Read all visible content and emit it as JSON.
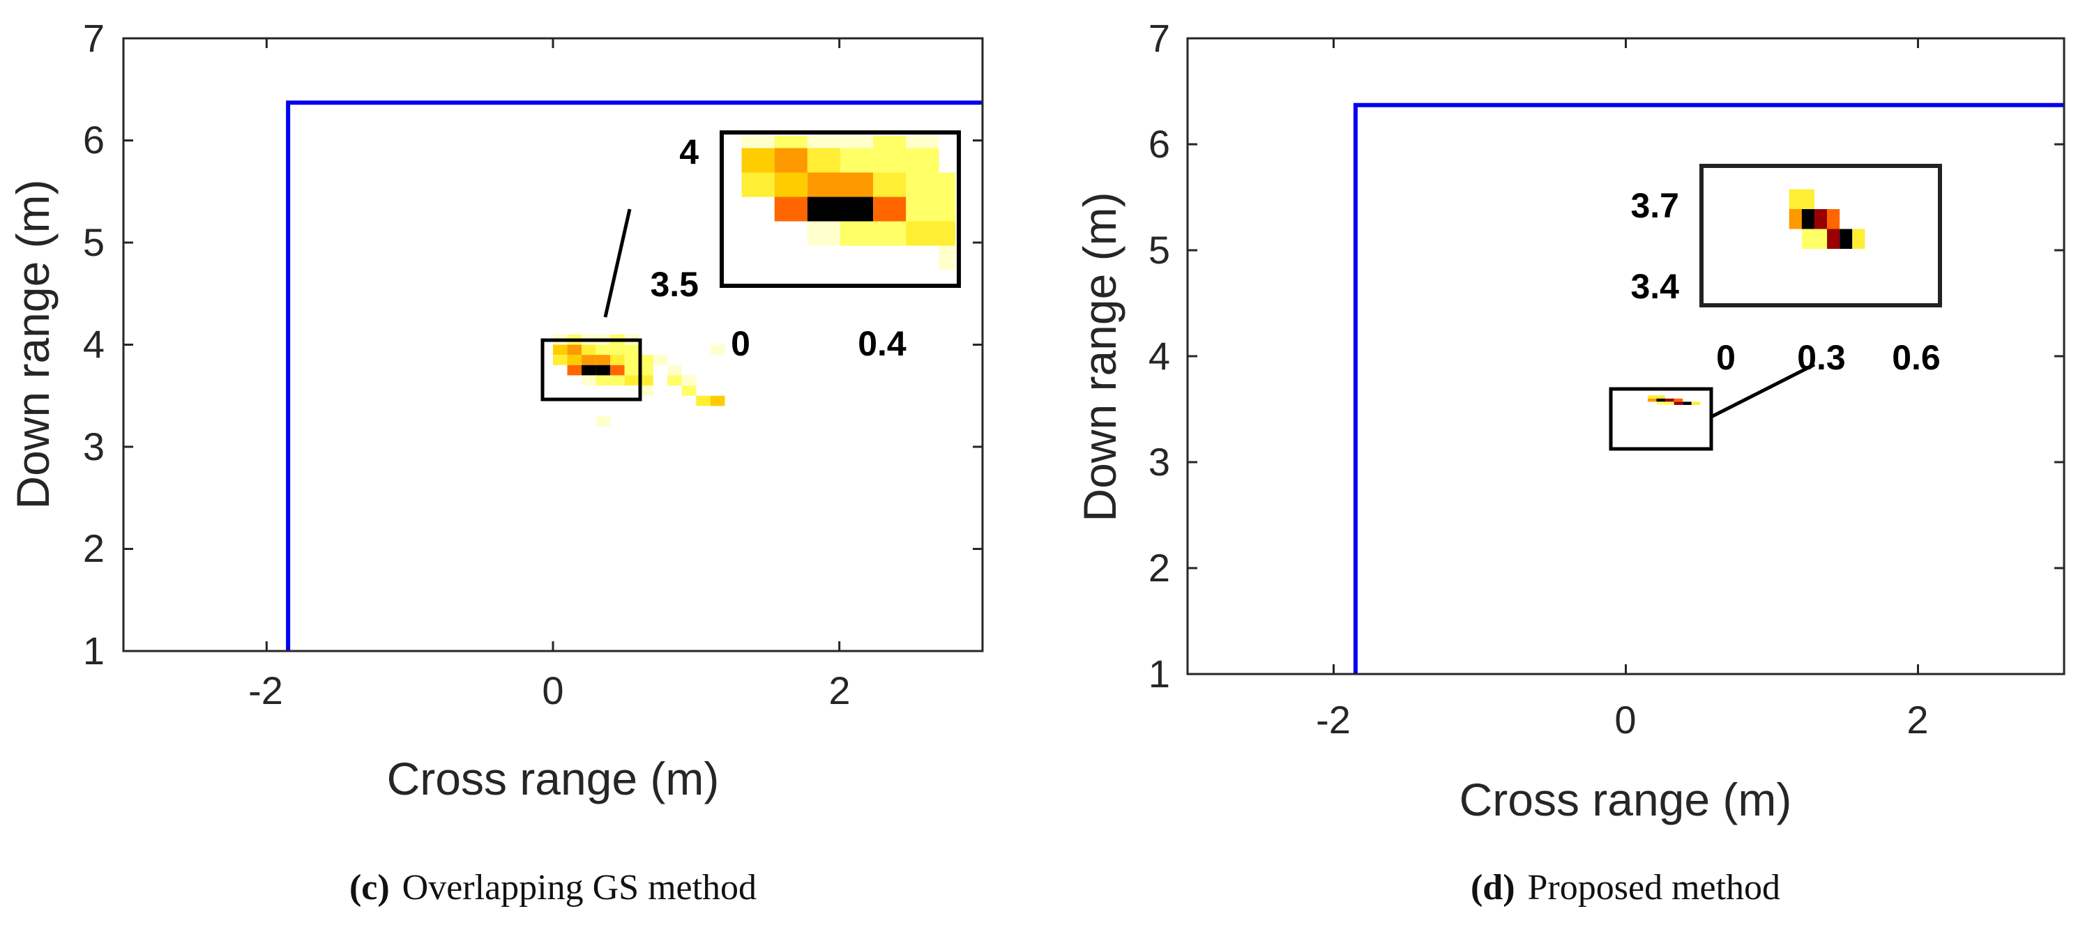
{
  "chart_data": [
    {
      "type": "heatmap",
      "panel": "c",
      "xlabel": "Cross range (m)",
      "ylabel": "Down range (m)",
      "xlim": [
        -3,
        3
      ],
      "ylim": [
        1,
        7
      ],
      "xticks": [
        "-2",
        "0",
        "2"
      ],
      "yticks": [
        "1",
        "2",
        "3",
        "4",
        "5",
        "6",
        "7"
      ],
      "wall": {
        "x": -1.85,
        "y": 6.37,
        "color": "#0000ee"
      },
      "cell_size": [
        0.1,
        0.1
      ],
      "cells": [
        [
          0.0,
          4.0,
          1
        ],
        [
          0.1,
          4.0,
          2
        ],
        [
          0.2,
          4.0,
          1
        ],
        [
          0.3,
          4.0,
          1
        ],
        [
          0.4,
          4.0,
          2
        ],
        [
          0.5,
          4.0,
          1
        ],
        [
          0.0,
          3.9,
          4
        ],
        [
          0.1,
          3.9,
          5
        ],
        [
          0.2,
          3.9,
          3
        ],
        [
          0.3,
          3.9,
          2
        ],
        [
          0.4,
          3.9,
          2
        ],
        [
          0.5,
          3.9,
          2
        ],
        [
          1.1,
          3.9,
          1
        ],
        [
          0.0,
          3.8,
          3
        ],
        [
          0.1,
          3.8,
          4
        ],
        [
          0.2,
          3.8,
          5
        ],
        [
          0.3,
          3.8,
          5
        ],
        [
          0.4,
          3.8,
          3
        ],
        [
          0.5,
          3.8,
          2
        ],
        [
          0.6,
          3.8,
          2
        ],
        [
          0.7,
          3.8,
          1
        ],
        [
          0.1,
          3.7,
          6
        ],
        [
          0.2,
          3.7,
          9
        ],
        [
          0.3,
          3.7,
          9
        ],
        [
          0.4,
          3.7,
          6
        ],
        [
          0.5,
          3.7,
          2
        ],
        [
          0.6,
          3.7,
          2
        ],
        [
          0.8,
          3.7,
          1
        ],
        [
          0.2,
          3.6,
          1
        ],
        [
          0.3,
          3.6,
          2
        ],
        [
          0.4,
          3.6,
          2
        ],
        [
          0.5,
          3.6,
          3
        ],
        [
          0.6,
          3.6,
          3
        ],
        [
          0.8,
          3.6,
          2
        ],
        [
          0.9,
          3.6,
          1
        ],
        [
          0.6,
          3.5,
          1
        ],
        [
          0.9,
          3.5,
          2
        ],
        [
          1.0,
          3.4,
          3
        ],
        [
          1.1,
          3.4,
          4
        ],
        [
          0.3,
          3.2,
          1
        ]
      ],
      "inset": {
        "xticks": [
          "0",
          "0.4"
        ],
        "yticks": [
          "4",
          "3.5"
        ]
      }
    },
    {
      "type": "heatmap",
      "panel": "d",
      "xlabel": "Cross range (m)",
      "ylabel": "Down range (m)",
      "xlim": [
        -3,
        3
      ],
      "ylim": [
        1,
        7
      ],
      "xticks": [
        "-2",
        "0",
        "2"
      ],
      "yticks": [
        "1",
        "2",
        "3",
        "4",
        "5",
        "6",
        "7"
      ],
      "wall": {
        "x": -1.85,
        "y": 6.37,
        "color": "#0000ee"
      },
      "cell_size": [
        0.06,
        0.03
      ],
      "cells": [
        [
          0.15,
          3.6,
          3
        ],
        [
          0.21,
          3.6,
          3
        ],
        [
          0.15,
          3.57,
          5
        ],
        [
          0.21,
          3.57,
          9
        ],
        [
          0.27,
          3.57,
          8
        ],
        [
          0.33,
          3.57,
          6
        ],
        [
          0.21,
          3.54,
          2
        ],
        [
          0.27,
          3.54,
          2
        ],
        [
          0.33,
          3.54,
          8
        ],
        [
          0.39,
          3.54,
          9
        ],
        [
          0.45,
          3.54,
          3
        ]
      ],
      "inset": {
        "xticks": [
          "0",
          "0.3",
          "0.6"
        ],
        "yticks": [
          "3.7",
          "3.4"
        ]
      }
    }
  ],
  "captions": [
    {
      "label": "(c)",
      "text": "Overlapping GS method"
    },
    {
      "label": "(d)",
      "text": "Proposed method"
    }
  ],
  "colormap": [
    "#ffffff",
    "#ffffcc",
    "#ffff66",
    "#ffee33",
    "#ffcc00",
    "#ff9900",
    "#ff6600",
    "#ff3311",
    "#990000",
    "#000000"
  ]
}
